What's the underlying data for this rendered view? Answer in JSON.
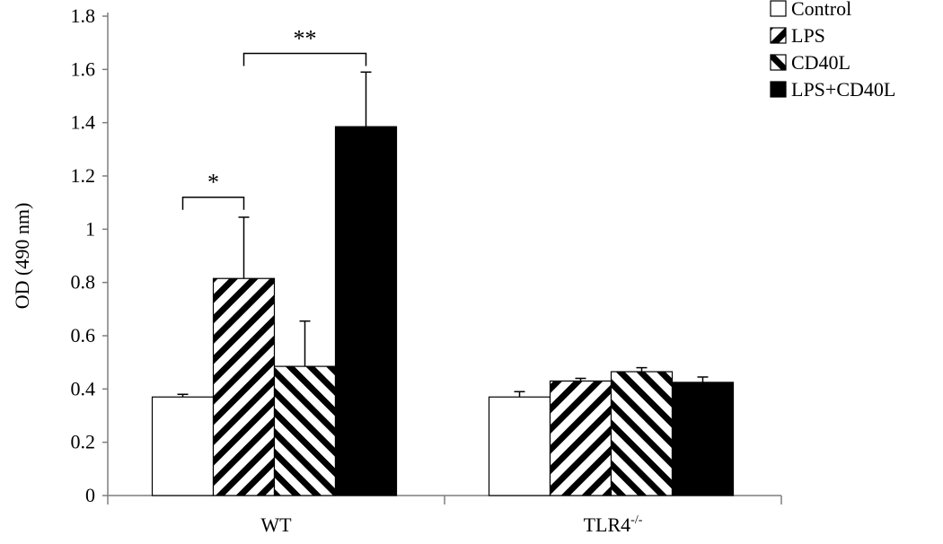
{
  "chart_data": {
    "type": "bar",
    "title": "",
    "xlabel": "",
    "ylabel": "OD (490 nm)",
    "ylim": [
      0,
      1.8
    ],
    "yticks": [
      0,
      0.2,
      0.4,
      0.6,
      0.8,
      1,
      1.2,
      1.4,
      1.6,
      1.8
    ],
    "ytick_labels": [
      "0",
      "0.2",
      "0.4",
      "0.6",
      "0.8",
      "1",
      "1.2",
      "1.4",
      "1.6",
      "1.8"
    ],
    "grid": false,
    "legend_position": "top-right",
    "categories": [
      {
        "base": "WT",
        "sup": ""
      },
      {
        "base": "TLR4",
        "sup": "-/-"
      }
    ],
    "series": [
      {
        "name": "Control",
        "pattern": "white",
        "values": [
          0.37,
          0.37
        ],
        "errors": [
          0.01,
          0.02
        ]
      },
      {
        "name": "LPS",
        "pattern": "diag-up",
        "values": [
          0.815,
          0.43
        ],
        "errors": [
          0.23,
          0.01
        ]
      },
      {
        "name": "CD40L",
        "pattern": "diag-down",
        "values": [
          0.485,
          0.465
        ],
        "errors": [
          0.17,
          0.015
        ]
      },
      {
        "name": "LPS+CD40L",
        "pattern": "solid-black",
        "values": [
          1.385,
          0.425
        ],
        "errors": [
          0.205,
          0.02
        ]
      }
    ],
    "annotations": [
      {
        "text": "*",
        "category": 0,
        "from_series": 0,
        "to_series": 1,
        "y": 1.12
      },
      {
        "text": "**",
        "category": 0,
        "from_series": 1,
        "to_series": 3,
        "y": 1.66
      }
    ]
  }
}
